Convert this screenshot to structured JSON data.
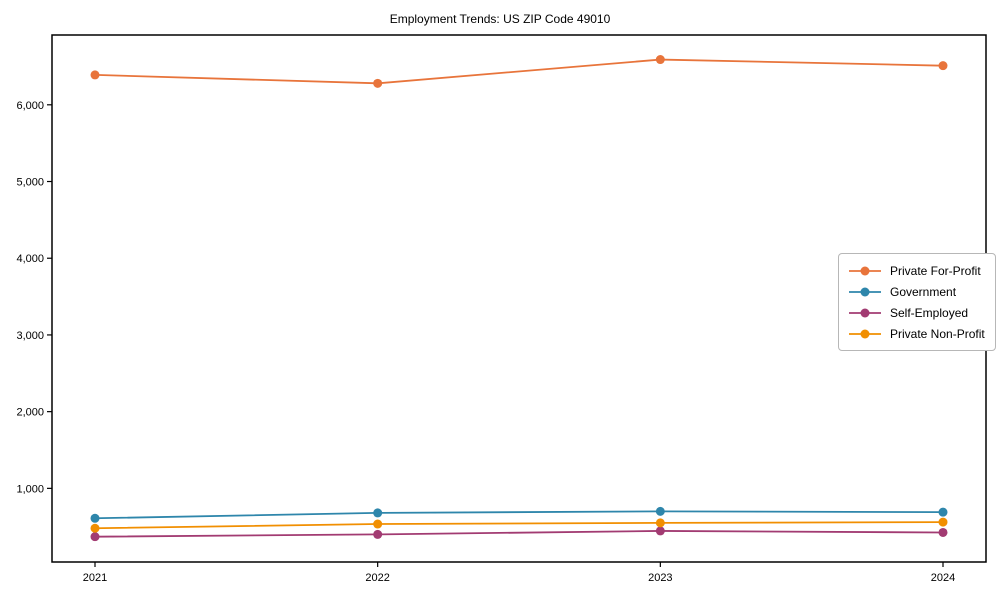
{
  "chart_data": {
    "type": "line",
    "title": "Employment Trends: US ZIP Code 49010",
    "x": [
      2021,
      2022,
      2023,
      2024
    ],
    "series": [
      {
        "name": "Private For-Profit",
        "color": "#e8743b",
        "values": [
          6390,
          6280,
          6590,
          6510
        ]
      },
      {
        "name": "Government",
        "color": "#2e86ab",
        "values": [
          610,
          680,
          700,
          690
        ]
      },
      {
        "name": "Self-Employed",
        "color": "#a23b72",
        "values": [
          370,
          400,
          445,
          425
        ]
      },
      {
        "name": "Private Non-Profit",
        "color": "#f18f01",
        "values": [
          480,
          535,
          550,
          560
        ]
      }
    ],
    "yticks": [
      1000,
      2000,
      3000,
      4000,
      5000,
      6000
    ],
    "ytick_labels": [
      "1,000",
      "2,000",
      "3,000",
      "4,000",
      "5,000",
      "6,000"
    ],
    "xtick_labels": [
      "2021",
      "2022",
      "2023",
      "2024"
    ],
    "ylim": [
      40,
      6910
    ],
    "xlabel": "",
    "ylabel": "",
    "grid": false,
    "legend_position": "center right",
    "axis_color": "#000000",
    "background_color": "#ffffff"
  }
}
